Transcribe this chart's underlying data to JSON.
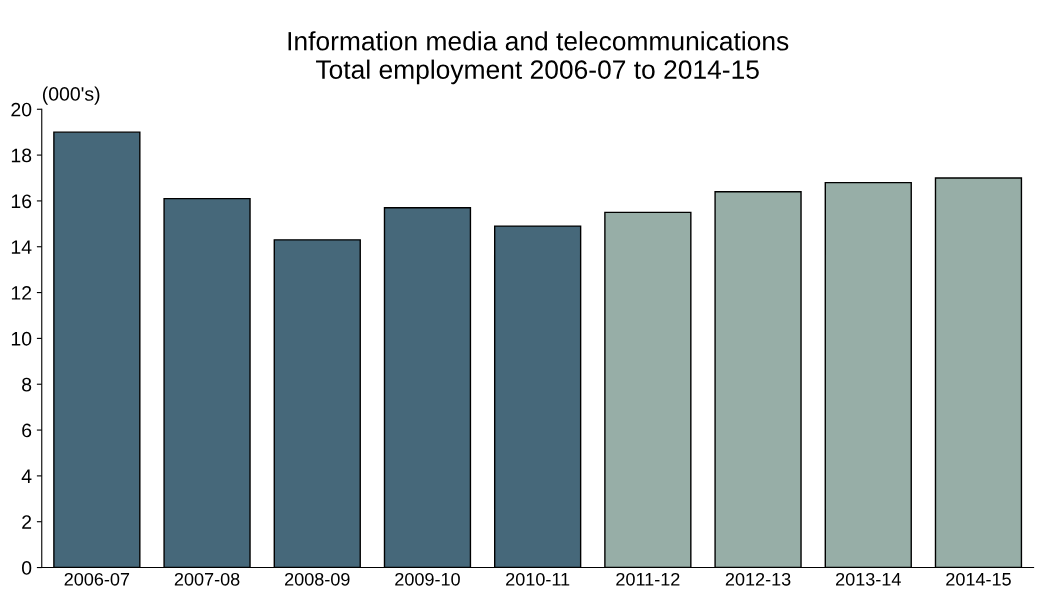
{
  "chart_data": {
    "type": "bar",
    "title": "Information media and telecommunications\nTotal employment 2006-07 to 2014-15",
    "ylabel": "(000's)",
    "categories": [
      "2006-07",
      "2007-08",
      "2008-09",
      "2009-10",
      "2010-11",
      "2011-12",
      "2012-13",
      "2013-14",
      "2014-15"
    ],
    "values": [
      19.0,
      16.1,
      14.3,
      15.7,
      14.9,
      15.5,
      16.4,
      16.8,
      17.0
    ],
    "colors": [
      "#46687a",
      "#46687a",
      "#46687a",
      "#46687a",
      "#46687a",
      "#97aea7",
      "#97aea7",
      "#97aea7",
      "#97aea7"
    ],
    "ylim": [
      0,
      20
    ],
    "yticks": [
      0,
      2,
      4,
      6,
      8,
      10,
      12,
      14,
      16,
      18,
      20
    ],
    "grid": false,
    "legend": false
  }
}
